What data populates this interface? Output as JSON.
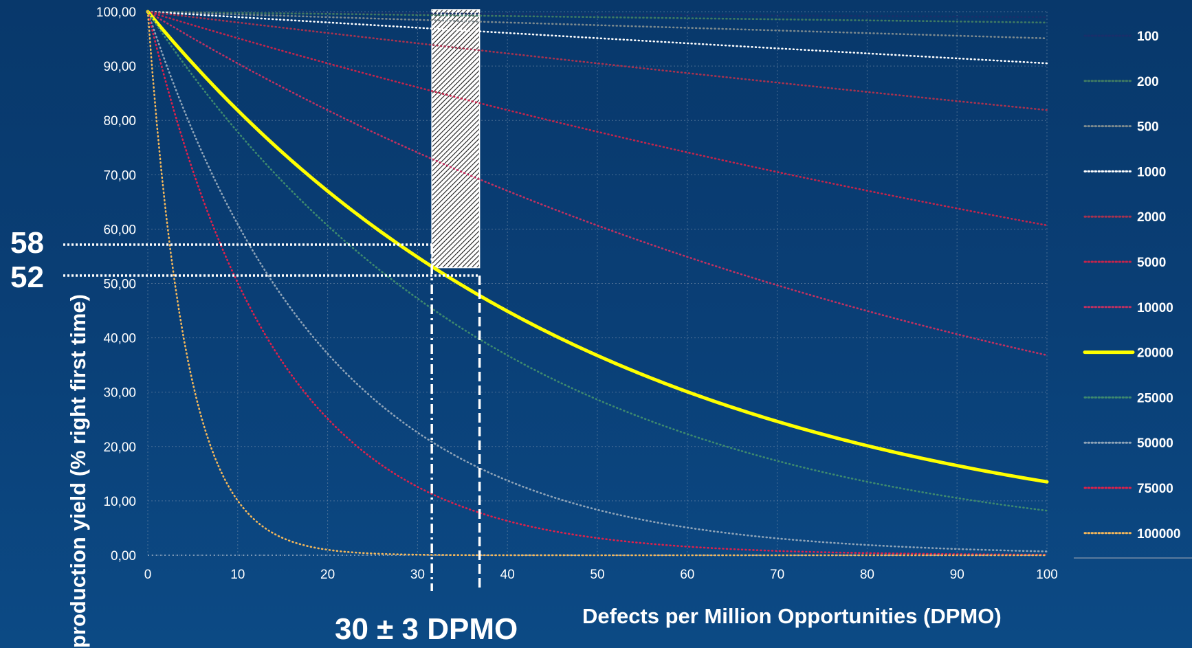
{
  "chart_data": {
    "type": "line",
    "xlabel": "Defects per Million Opportunities (DPMO)",
    "ylabel": "production yield (% right first time)",
    "xlim": [
      0,
      100
    ],
    "ylim": [
      0,
      100
    ],
    "x_ticks": [
      "0",
      "10",
      "20",
      "30",
      "40",
      "50",
      "60",
      "70",
      "80",
      "90",
      "100"
    ],
    "y_ticks": [
      "0,00",
      "10,00",
      "20,00",
      "30,00",
      "40,00",
      "50,00",
      "60,00",
      "70,00",
      "80,00",
      "90,00",
      "100,00"
    ],
    "grid": true,
    "legend_position": "right",
    "x": [
      0,
      10,
      20,
      30,
      40,
      50,
      60,
      70,
      80,
      90,
      100
    ],
    "series": [
      {
        "name": "100",
        "color": "#1a2f6a",
        "style": "dotted",
        "values": [
          100,
          99.9,
          99.8,
          99.7,
          99.6,
          99.5,
          99.4,
          99.3,
          99.2,
          99.1,
          99.0
        ]
      },
      {
        "name": "200",
        "color": "#3f7a63",
        "style": "dotted",
        "values": [
          100,
          99.8,
          99.6,
          99.4,
          99.2,
          99.0,
          98.8,
          98.6,
          98.4,
          98.2,
          98.0
        ]
      },
      {
        "name": "500",
        "color": "#7d8a8e",
        "style": "dotted",
        "values": [
          100,
          99.5,
          99.0,
          98.5,
          98.0,
          97.5,
          97.0,
          96.6,
          96.1,
          95.6,
          95.1
        ]
      },
      {
        "name": "1000",
        "color": "#ffffff",
        "style": "dotted",
        "values": [
          100,
          99.0,
          98.0,
          97.0,
          96.1,
          95.1,
          94.2,
          93.2,
          92.3,
          91.4,
          90.5
        ]
      },
      {
        "name": "2000",
        "color": "#a8324f",
        "style": "dotted",
        "values": [
          100,
          98.0,
          96.1,
          94.2,
          92.3,
          90.5,
          88.7,
          86.9,
          85.2,
          83.5,
          81.9
        ]
      },
      {
        "name": "5000",
        "color": "#c4244b",
        "style": "dotted",
        "values": [
          100,
          95.1,
          90.5,
          86.1,
          81.9,
          77.9,
          74.1,
          70.5,
          67.0,
          63.8,
          60.7
        ]
      },
      {
        "name": "10000",
        "color": "#c23060",
        "style": "dotted",
        "values": [
          100,
          90.5,
          81.9,
          74.1,
          67.0,
          60.7,
          54.9,
          49.7,
          44.9,
          40.7,
          36.8
        ]
      },
      {
        "name": "20000",
        "color": "#ffff00",
        "style": "solid",
        "values": [
          100,
          81.9,
          67.0,
          54.9,
          44.9,
          36.8,
          30.1,
          24.7,
          20.2,
          16.5,
          13.5
        ]
      },
      {
        "name": "25000",
        "color": "#3e8a6e",
        "style": "dotted",
        "values": [
          100,
          77.9,
          60.7,
          47.2,
          36.8,
          28.7,
          22.3,
          17.4,
          13.5,
          10.5,
          8.2
        ]
      },
      {
        "name": "50000",
        "color": "#8fa4b8",
        "style": "dotted",
        "values": [
          100,
          60.7,
          36.8,
          22.3,
          13.5,
          8.2,
          5.0,
          3.0,
          1.8,
          1.1,
          0.7
        ]
      },
      {
        "name": "75000",
        "color": "#e0204a",
        "style": "dotted",
        "values": [
          100,
          47.2,
          22.3,
          10.5,
          5.0,
          2.4,
          1.1,
          0.5,
          0.2,
          0.1,
          0.1
        ]
      },
      {
        "name": "100000",
        "color": "#f4b75a",
        "style": "dotted",
        "values": [
          100,
          36.8,
          13.5,
          5.0,
          1.8,
          0.7,
          0.2,
          0.1,
          0.0,
          0.0,
          0.0
        ]
      }
    ],
    "annotations": {
      "range_label": "30 ± 3 DPMO",
      "range_x": [
        27,
        33
      ],
      "yield_labels": [
        "58",
        "52"
      ],
      "yield_values": [
        58,
        52
      ]
    }
  }
}
